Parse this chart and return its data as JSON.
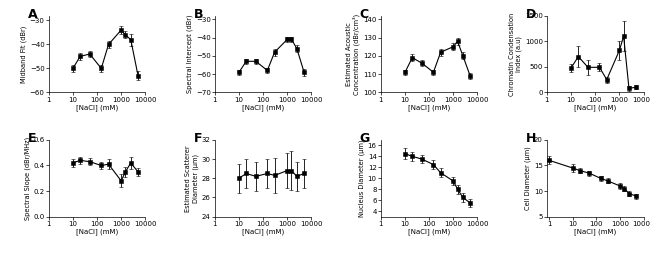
{
  "nacl_conc": [
    10,
    20,
    50,
    150,
    300,
    1000,
    1500,
    2500,
    5000
  ],
  "panels": {
    "A": {
      "label": "A",
      "ylabel": "Midband Fit (dBr)",
      "ylim": [
        -60,
        -28
      ],
      "yticks": [
        -60,
        -50,
        -40,
        -30
      ],
      "y": [
        -50,
        -45,
        -44,
        -50,
        -40,
        -34,
        -36,
        -38,
        -53
      ],
      "yerr": [
        1.5,
        1.5,
        1.2,
        1.5,
        1.5,
        1.5,
        1.5,
        2.5,
        2.0
      ]
    },
    "B": {
      "label": "B",
      "ylabel": "Spectral Intercept (dBr)",
      "ylim": [
        -70,
        -28
      ],
      "yticks": [
        -70,
        -60,
        -50,
        -40,
        -30
      ],
      "y": [
        -59,
        -53,
        -53,
        -58,
        -48,
        -41,
        -41,
        -46,
        -59
      ],
      "yerr": [
        1.5,
        1.5,
        1.5,
        1.5,
        2.0,
        1.5,
        1.5,
        2.0,
        2.0
      ]
    },
    "C": {
      "label": "C",
      "ylabel": "Estimated Acoustic\nConcentration (dBr/cm³)",
      "ylim": [
        100,
        142
      ],
      "yticks": [
        100,
        110,
        120,
        130,
        140
      ],
      "y": [
        111,
        119,
        116,
        111,
        122,
        125,
        128,
        120,
        109
      ],
      "yerr": [
        1.5,
        2.0,
        1.5,
        1.5,
        2.0,
        2.0,
        2.0,
        2.0,
        1.5
      ]
    },
    "D": {
      "label": "D",
      "ylabel": "Chromatin Condensation\nIndex (a.u)",
      "ylim": [
        0,
        1500
      ],
      "yticks": [
        0,
        500,
        1000,
        1500
      ],
      "y": [
        480,
        700,
        490,
        490,
        250,
        820,
        1100,
        80,
        100
      ],
      "yerr": [
        80,
        200,
        150,
        80,
        60,
        180,
        300,
        50,
        40
      ]
    },
    "E": {
      "label": "E",
      "ylabel": "Spectral Slope (dBr/MHz)",
      "ylim": [
        0.0,
        0.6
      ],
      "yticks": [
        0.0,
        0.2,
        0.4,
        0.6
      ],
      "y": [
        0.42,
        0.44,
        0.43,
        0.4,
        0.41,
        0.28,
        0.35,
        0.42,
        0.35
      ],
      "yerr": [
        0.03,
        0.03,
        0.03,
        0.03,
        0.04,
        0.05,
        0.04,
        0.05,
        0.03
      ]
    },
    "F": {
      "label": "F",
      "ylabel": "Estimated Scatterer\nDiameter (μm)",
      "ylim": [
        24,
        32
      ],
      "yticks": [
        24,
        26,
        28,
        30,
        32
      ],
      "y": [
        28.0,
        28.5,
        28.2,
        28.5,
        28.3,
        28.8,
        28.8,
        28.2,
        28.5
      ],
      "yerr": [
        1.5,
        1.5,
        1.5,
        1.5,
        1.8,
        1.8,
        2.0,
        1.5,
        1.5
      ]
    },
    "G": {
      "label": "G",
      "ylabel": "Nucleus Diameter (μm)",
      "ylim": [
        3,
        17
      ],
      "yticks": [
        4,
        6,
        8,
        10,
        12,
        14,
        16
      ],
      "y": [
        14.5,
        14.0,
        13.5,
        12.5,
        11.0,
        9.5,
        8.0,
        6.5,
        5.5
      ],
      "yerr": [
        1.0,
        0.8,
        0.8,
        0.8,
        0.8,
        0.8,
        0.8,
        0.8,
        0.8
      ]
    },
    "H": {
      "label": "H",
      "ylabel": "Cell Diameter (μm)",
      "nacl_conc_h": [
        1,
        10,
        20,
        50,
        150,
        300,
        1000,
        1500,
        2500,
        5000
      ],
      "ylim": [
        5,
        20
      ],
      "yticks": [
        5,
        10,
        15,
        20
      ],
      "y": [
        16.0,
        14.5,
        14.0,
        13.5,
        12.5,
        12.0,
        11.0,
        10.5,
        9.5,
        9.0
      ],
      "yerr": [
        0.8,
        0.8,
        0.5,
        0.5,
        0.5,
        0.5,
        0.5,
        0.5,
        0.5,
        0.5
      ]
    }
  },
  "xlabel": "[NaCl] (mM)",
  "line_color": "black",
  "marker": "s",
  "markersize": 2.5,
  "linewidth": 0.8,
  "capsize": 1.5,
  "elinewidth": 0.6
}
